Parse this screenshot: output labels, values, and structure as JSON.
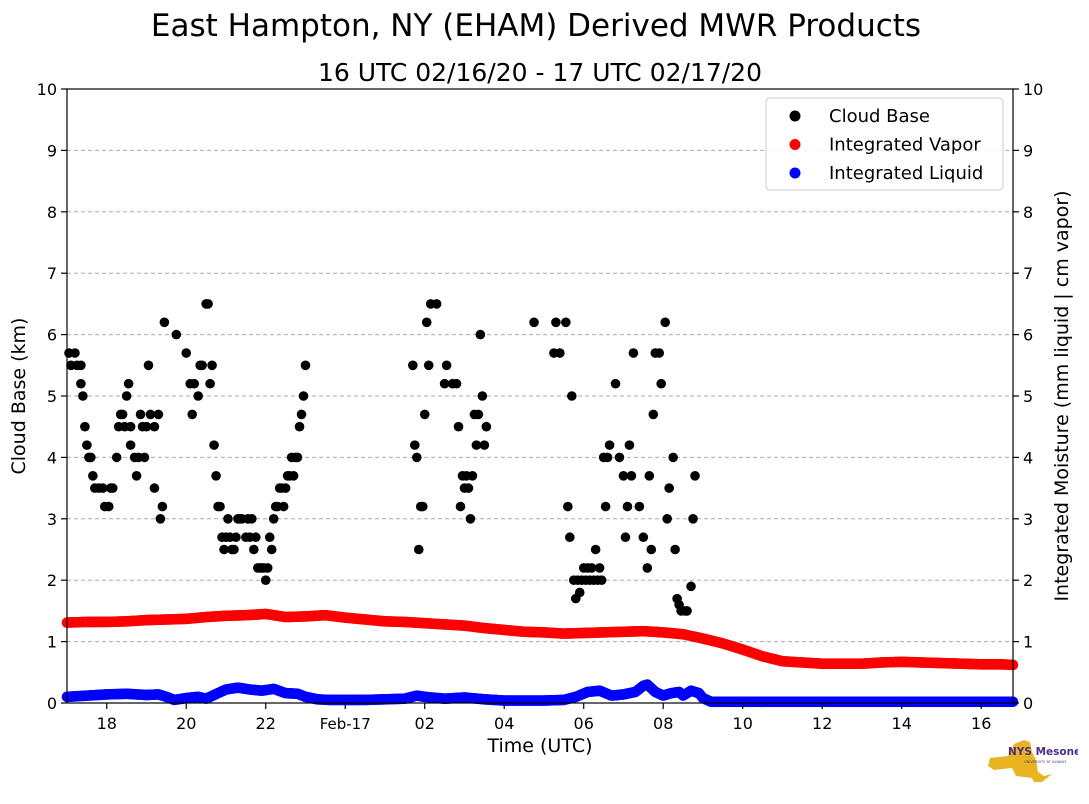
{
  "chart_data": {
    "type": "scatter",
    "title": "East Hampton, NY (EHAM) Derived MWR Products",
    "subtitle": "16 UTC 02/16/20 - 17 UTC 02/17/20",
    "xlabel": "Time (UTC)",
    "ylabel_left": "Cloud Base (km)",
    "ylabel_right": "Integrated Moisture (mm liquid | cm vapor)",
    "x_unit": "hours since 00 UTC 02/16/20",
    "xlim": [
      17,
      40.8
    ],
    "ylim": [
      0,
      10
    ],
    "y_ticks": [
      "0",
      "1",
      "2",
      "3",
      "4",
      "5",
      "6",
      "7",
      "8",
      "9",
      "10"
    ],
    "x_ticks": [
      {
        "x": 18,
        "label": "18"
      },
      {
        "x": 20,
        "label": "20"
      },
      {
        "x": 22,
        "label": "22"
      },
      {
        "x": 24,
        "label": "Feb-17"
      },
      {
        "x": 26,
        "label": "02"
      },
      {
        "x": 28,
        "label": "04"
      },
      {
        "x": 30,
        "label": "06"
      },
      {
        "x": 32,
        "label": "08"
      },
      {
        "x": 34,
        "label": "10"
      },
      {
        "x": 36,
        "label": "12"
      },
      {
        "x": 38,
        "label": "14"
      },
      {
        "x": 40,
        "label": "16"
      }
    ],
    "grid": true,
    "legend_position": "top-right",
    "series": [
      {
        "name": "Cloud Base",
        "color": "#000000",
        "points": [
          [
            17.05,
            5.7
          ],
          [
            17.1,
            5.5
          ],
          [
            17.2,
            5.7
          ],
          [
            17.25,
            5.5
          ],
          [
            17.35,
            5.5
          ],
          [
            17.35,
            5.2
          ],
          [
            17.4,
            5.0
          ],
          [
            17.45,
            4.5
          ],
          [
            17.5,
            4.2
          ],
          [
            17.55,
            4.0
          ],
          [
            17.6,
            4.0
          ],
          [
            17.65,
            3.7
          ],
          [
            17.7,
            3.5
          ],
          [
            17.8,
            3.5
          ],
          [
            17.9,
            3.5
          ],
          [
            17.95,
            3.2
          ],
          [
            18.05,
            3.2
          ],
          [
            18.1,
            3.5
          ],
          [
            18.15,
            3.5
          ],
          [
            18.25,
            4.0
          ],
          [
            18.3,
            4.5
          ],
          [
            18.35,
            4.7
          ],
          [
            18.4,
            4.7
          ],
          [
            18.45,
            4.5
          ],
          [
            18.5,
            5.0
          ],
          [
            18.55,
            5.2
          ],
          [
            18.6,
            4.5
          ],
          [
            18.6,
            4.2
          ],
          [
            18.7,
            4.0
          ],
          [
            18.75,
            3.7
          ],
          [
            18.8,
            4.0
          ],
          [
            18.85,
            4.7
          ],
          [
            18.9,
            4.5
          ],
          [
            18.95,
            4.0
          ],
          [
            19.0,
            4.5
          ],
          [
            19.05,
            5.5
          ],
          [
            19.1,
            4.7
          ],
          [
            19.2,
            3.5
          ],
          [
            19.2,
            4.5
          ],
          [
            19.3,
            4.7
          ],
          [
            19.35,
            3.0
          ],
          [
            19.4,
            3.2
          ],
          [
            19.45,
            6.2
          ],
          [
            19.75,
            6.0
          ],
          [
            20.0,
            5.7
          ],
          [
            20.1,
            5.2
          ],
          [
            20.15,
            4.7
          ],
          [
            20.2,
            5.2
          ],
          [
            20.3,
            5.0
          ],
          [
            20.35,
            5.5
          ],
          [
            20.4,
            5.5
          ],
          [
            20.5,
            6.5
          ],
          [
            20.55,
            6.5
          ],
          [
            20.6,
            5.2
          ],
          [
            20.65,
            5.5
          ],
          [
            20.7,
            4.2
          ],
          [
            20.75,
            3.7
          ],
          [
            20.8,
            3.2
          ],
          [
            20.85,
            3.2
          ],
          [
            20.9,
            2.7
          ],
          [
            20.95,
            2.5
          ],
          [
            21.0,
            2.7
          ],
          [
            21.05,
            3.0
          ],
          [
            21.1,
            2.7
          ],
          [
            21.15,
            2.5
          ],
          [
            21.2,
            2.5
          ],
          [
            21.25,
            2.7
          ],
          [
            21.3,
            3.0
          ],
          [
            21.35,
            3.0
          ],
          [
            21.4,
            3.0
          ],
          [
            21.5,
            2.7
          ],
          [
            21.55,
            3.0
          ],
          [
            21.6,
            2.7
          ],
          [
            21.65,
            3.0
          ],
          [
            21.7,
            2.5
          ],
          [
            21.75,
            2.7
          ],
          [
            21.8,
            2.2
          ],
          [
            21.85,
            2.2
          ],
          [
            21.9,
            2.2
          ],
          [
            21.95,
            2.2
          ],
          [
            22.0,
            2.0
          ],
          [
            22.05,
            2.2
          ],
          [
            22.1,
            2.7
          ],
          [
            22.15,
            2.5
          ],
          [
            22.2,
            3.0
          ],
          [
            22.25,
            3.2
          ],
          [
            22.3,
            3.2
          ],
          [
            22.35,
            3.5
          ],
          [
            22.4,
            3.5
          ],
          [
            22.45,
            3.2
          ],
          [
            22.5,
            3.5
          ],
          [
            22.55,
            3.7
          ],
          [
            22.6,
            3.7
          ],
          [
            22.65,
            4.0
          ],
          [
            22.7,
            3.7
          ],
          [
            22.75,
            4.0
          ],
          [
            22.8,
            4.0
          ],
          [
            22.85,
            4.5
          ],
          [
            22.9,
            4.7
          ],
          [
            22.95,
            5.0
          ],
          [
            23.0,
            5.5
          ],
          [
            25.7,
            5.5
          ],
          [
            25.75,
            4.2
          ],
          [
            25.8,
            4.0
          ],
          [
            25.85,
            2.5
          ],
          [
            25.9,
            3.2
          ],
          [
            25.95,
            3.2
          ],
          [
            26.0,
            4.7
          ],
          [
            26.05,
            6.2
          ],
          [
            26.1,
            5.5
          ],
          [
            26.15,
            6.5
          ],
          [
            26.3,
            6.5
          ],
          [
            26.5,
            5.2
          ],
          [
            26.55,
            5.5
          ],
          [
            26.7,
            5.2
          ],
          [
            26.8,
            5.2
          ],
          [
            26.85,
            4.5
          ],
          [
            26.9,
            3.2
          ],
          [
            26.95,
            3.7
          ],
          [
            27.0,
            3.5
          ],
          [
            27.05,
            3.7
          ],
          [
            27.1,
            3.5
          ],
          [
            27.15,
            3.0
          ],
          [
            27.2,
            3.7
          ],
          [
            27.25,
            4.7
          ],
          [
            27.3,
            4.2
          ],
          [
            27.35,
            4.7
          ],
          [
            27.4,
            6.0
          ],
          [
            27.45,
            5.0
          ],
          [
            27.5,
            4.2
          ],
          [
            27.55,
            4.5
          ],
          [
            28.75,
            6.2
          ],
          [
            29.25,
            5.7
          ],
          [
            29.3,
            6.2
          ],
          [
            29.4,
            5.7
          ],
          [
            29.55,
            6.2
          ],
          [
            29.6,
            3.2
          ],
          [
            29.65,
            2.7
          ],
          [
            29.7,
            5.0
          ],
          [
            29.75,
            2.0
          ],
          [
            29.8,
            1.7
          ],
          [
            29.85,
            2.0
          ],
          [
            29.9,
            1.8
          ],
          [
            29.95,
            2.0
          ],
          [
            30.0,
            2.2
          ],
          [
            30.05,
            2.0
          ],
          [
            30.1,
            2.2
          ],
          [
            30.15,
            2.0
          ],
          [
            30.2,
            2.2
          ],
          [
            30.25,
            2.0
          ],
          [
            30.3,
            2.5
          ],
          [
            30.35,
            2.0
          ],
          [
            30.4,
            2.2
          ],
          [
            30.45,
            2.0
          ],
          [
            30.5,
            4.0
          ],
          [
            30.55,
            3.2
          ],
          [
            30.6,
            4.0
          ],
          [
            30.65,
            4.2
          ],
          [
            30.8,
            5.2
          ],
          [
            30.9,
            4.0
          ],
          [
            31.0,
            3.7
          ],
          [
            31.05,
            2.7
          ],
          [
            31.1,
            3.2
          ],
          [
            31.15,
            4.2
          ],
          [
            31.2,
            3.7
          ],
          [
            31.25,
            5.7
          ],
          [
            31.4,
            3.2
          ],
          [
            31.5,
            2.7
          ],
          [
            31.6,
            2.2
          ],
          [
            31.65,
            3.7
          ],
          [
            31.7,
            2.5
          ],
          [
            31.75,
            4.7
          ],
          [
            31.8,
            5.7
          ],
          [
            31.9,
            5.7
          ],
          [
            31.95,
            5.2
          ],
          [
            32.05,
            6.2
          ],
          [
            32.1,
            3.0
          ],
          [
            32.15,
            3.5
          ],
          [
            32.25,
            4.0
          ],
          [
            32.3,
            2.5
          ],
          [
            32.35,
            1.7
          ],
          [
            32.4,
            1.6
          ],
          [
            32.45,
            1.5
          ],
          [
            32.55,
            1.5
          ],
          [
            32.6,
            1.5
          ],
          [
            32.7,
            1.9
          ],
          [
            32.75,
            3.0
          ],
          [
            32.8,
            3.7
          ]
        ]
      },
      {
        "name": "Integrated Vapor",
        "color": "#ff0000",
        "points": [
          [
            17.0,
            1.31
          ],
          [
            17.5,
            1.32
          ],
          [
            18.0,
            1.32
          ],
          [
            18.5,
            1.33
          ],
          [
            19.0,
            1.35
          ],
          [
            19.5,
            1.36
          ],
          [
            20.0,
            1.37
          ],
          [
            20.5,
            1.4
          ],
          [
            21.0,
            1.42
          ],
          [
            21.5,
            1.43
          ],
          [
            22.0,
            1.45
          ],
          [
            22.5,
            1.4
          ],
          [
            23.0,
            1.41
          ],
          [
            23.5,
            1.43
          ],
          [
            24.0,
            1.39
          ],
          [
            24.5,
            1.36
          ],
          [
            25.0,
            1.33
          ],
          [
            25.5,
            1.32
          ],
          [
            26.0,
            1.3
          ],
          [
            26.5,
            1.28
          ],
          [
            27.0,
            1.26
          ],
          [
            27.5,
            1.22
          ],
          [
            28.0,
            1.19
          ],
          [
            28.5,
            1.16
          ],
          [
            29.0,
            1.15
          ],
          [
            29.5,
            1.13
          ],
          [
            30.0,
            1.14
          ],
          [
            30.5,
            1.15
          ],
          [
            31.0,
            1.16
          ],
          [
            31.5,
            1.17
          ],
          [
            32.0,
            1.15
          ],
          [
            32.5,
            1.12
          ],
          [
            33.0,
            1.05
          ],
          [
            33.5,
            0.97
          ],
          [
            34.0,
            0.87
          ],
          [
            34.5,
            0.76
          ],
          [
            35.0,
            0.68
          ],
          [
            35.5,
            0.66
          ],
          [
            36.0,
            0.64
          ],
          [
            36.5,
            0.64
          ],
          [
            37.0,
            0.64
          ],
          [
            37.5,
            0.66
          ],
          [
            38.0,
            0.67
          ],
          [
            38.5,
            0.66
          ],
          [
            39.0,
            0.65
          ],
          [
            39.5,
            0.64
          ],
          [
            40.0,
            0.63
          ],
          [
            40.5,
            0.63
          ],
          [
            40.8,
            0.62
          ]
        ]
      },
      {
        "name": "Integrated Liquid",
        "color": "#0000ff",
        "points": [
          [
            17.0,
            0.1
          ],
          [
            17.5,
            0.12
          ],
          [
            18.0,
            0.14
          ],
          [
            18.5,
            0.15
          ],
          [
            19.0,
            0.13
          ],
          [
            19.3,
            0.14
          ],
          [
            19.5,
            0.1
          ],
          [
            19.7,
            0.05
          ],
          [
            20.0,
            0.08
          ],
          [
            20.3,
            0.1
          ],
          [
            20.5,
            0.07
          ],
          [
            20.8,
            0.16
          ],
          [
            21.0,
            0.22
          ],
          [
            21.3,
            0.25
          ],
          [
            21.6,
            0.22
          ],
          [
            21.9,
            0.2
          ],
          [
            22.2,
            0.23
          ],
          [
            22.5,
            0.16
          ],
          [
            22.8,
            0.15
          ],
          [
            23.0,
            0.1
          ],
          [
            23.3,
            0.06
          ],
          [
            23.6,
            0.05
          ],
          [
            24.0,
            0.05
          ],
          [
            24.5,
            0.05
          ],
          [
            25.0,
            0.06
          ],
          [
            25.5,
            0.07
          ],
          [
            25.8,
            0.12
          ],
          [
            26.0,
            0.1
          ],
          [
            26.5,
            0.07
          ],
          [
            27.0,
            0.09
          ],
          [
            27.5,
            0.06
          ],
          [
            28.0,
            0.04
          ],
          [
            28.5,
            0.04
          ],
          [
            29.0,
            0.04
          ],
          [
            29.5,
            0.05
          ],
          [
            29.8,
            0.1
          ],
          [
            30.1,
            0.18
          ],
          [
            30.4,
            0.2
          ],
          [
            30.7,
            0.12
          ],
          [
            31.0,
            0.14
          ],
          [
            31.3,
            0.18
          ],
          [
            31.5,
            0.28
          ],
          [
            31.6,
            0.3
          ],
          [
            31.8,
            0.18
          ],
          [
            32.0,
            0.12
          ],
          [
            32.2,
            0.16
          ],
          [
            32.4,
            0.18
          ],
          [
            32.5,
            0.12
          ],
          [
            32.7,
            0.2
          ],
          [
            32.9,
            0.16
          ],
          [
            33.0,
            0.08
          ],
          [
            33.2,
            0.02
          ],
          [
            34.0,
            0.02
          ],
          [
            35.0,
            0.02
          ],
          [
            36.0,
            0.02
          ],
          [
            37.0,
            0.02
          ],
          [
            38.0,
            0.02
          ],
          [
            39.0,
            0.02
          ],
          [
            40.0,
            0.02
          ],
          [
            40.8,
            0.02
          ]
        ]
      }
    ]
  },
  "logo": {
    "text": "NYS Mesonet",
    "subtext": "UNIVERSITY AT ALBANY",
    "color_gold": "#e8b422",
    "color_purple": "#4b2e83"
  }
}
